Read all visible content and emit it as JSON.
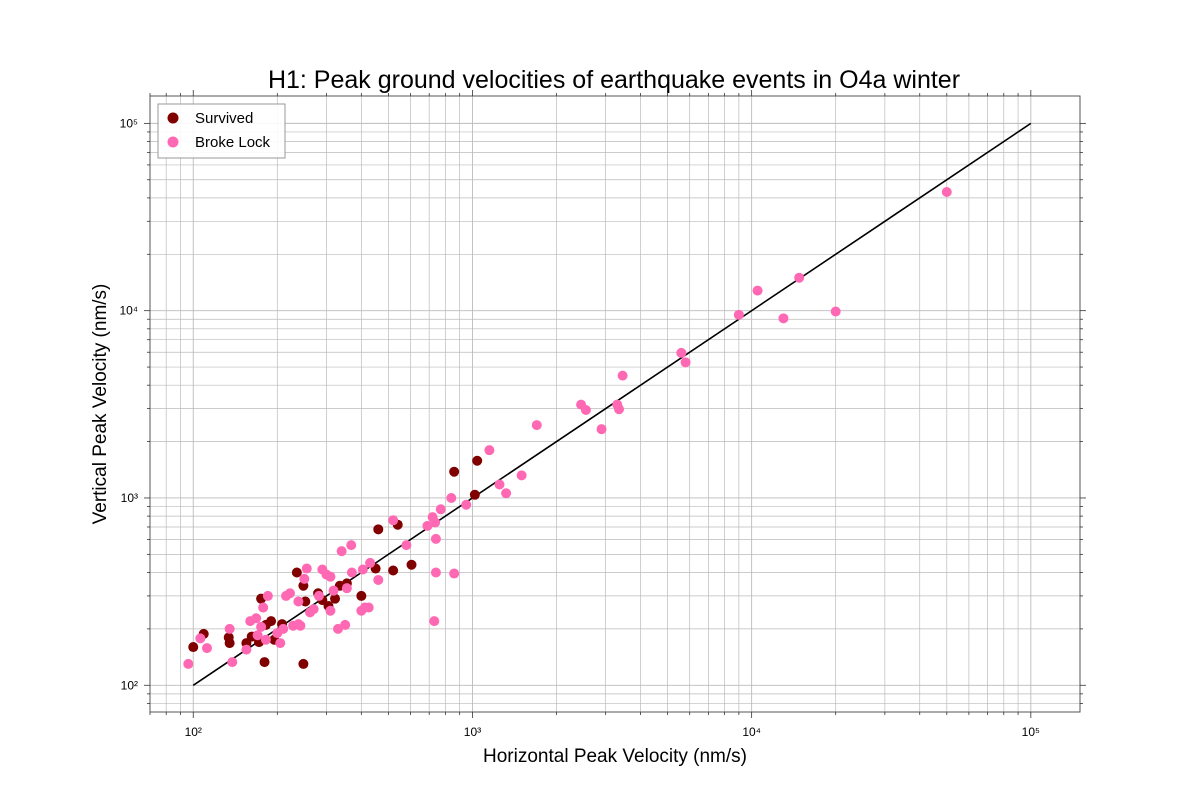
{
  "chart_data": {
    "type": "scatter",
    "title": "H1: Peak ground velocities of earthquake events in O4a winter",
    "xlabel": "Horizontal Peak Velocity (nm/s)",
    "ylabel": "Vertical Peak Velocity (nm/s)",
    "xscale": "log",
    "yscale": "log",
    "xlim": [
      70,
      150000
    ],
    "ylim": [
      72,
      140000
    ],
    "grid": true,
    "legend_position": "top-left",
    "x_ticks": [
      {
        "value": 100,
        "label": "10²"
      },
      {
        "value": 1000,
        "label": "10³"
      },
      {
        "value": 10000,
        "label": "10⁴"
      },
      {
        "value": 100000,
        "label": "10⁵"
      }
    ],
    "y_ticks": [
      {
        "value": 100,
        "label": "10²"
      },
      {
        "value": 1000,
        "label": "10³"
      },
      {
        "value": 10000,
        "label": "10⁴"
      },
      {
        "value": 100000,
        "label": "10⁵"
      }
    ],
    "reference_line": {
      "x": [
        100,
        100000
      ],
      "y": [
        100,
        100000
      ],
      "color": "#000000"
    },
    "series": [
      {
        "name": "Survived",
        "color": "#800000",
        "points": [
          [
            100,
            160
          ],
          [
            109,
            188
          ],
          [
            134,
            180
          ],
          [
            135,
            168
          ],
          [
            155,
            168
          ],
          [
            162,
            182
          ],
          [
            172,
            170
          ],
          [
            175,
            290
          ],
          [
            180,
            133
          ],
          [
            182,
            210
          ],
          [
            190,
            220
          ],
          [
            195,
            175
          ],
          [
            208,
            212
          ],
          [
            235,
            400
          ],
          [
            248,
            340
          ],
          [
            252,
            280
          ],
          [
            248,
            130
          ],
          [
            280,
            310
          ],
          [
            290,
            285
          ],
          [
            305,
            265
          ],
          [
            322,
            290
          ],
          [
            335,
            340
          ],
          [
            355,
            350
          ],
          [
            400,
            300
          ],
          [
            450,
            420
          ],
          [
            460,
            680
          ],
          [
            520,
            410
          ],
          [
            540,
            720
          ],
          [
            605,
            440
          ],
          [
            860,
            1380
          ],
          [
            1020,
            1040
          ],
          [
            1040,
            1580
          ]
        ]
      },
      {
        "name": "Broke Lock",
        "color": "#ff69b4",
        "points": [
          [
            96,
            130
          ],
          [
            106,
            178
          ],
          [
            112,
            158
          ],
          [
            135,
            200
          ],
          [
            138,
            133
          ],
          [
            155,
            155
          ],
          [
            160,
            220
          ],
          [
            168,
            228
          ],
          [
            170,
            185
          ],
          [
            175,
            205
          ],
          [
            178,
            260
          ],
          [
            182,
            175
          ],
          [
            185,
            300
          ],
          [
            200,
            190
          ],
          [
            205,
            168
          ],
          [
            210,
            200
          ],
          [
            215,
            300
          ],
          [
            222,
            310
          ],
          [
            228,
            208
          ],
          [
            238,
            212
          ],
          [
            238,
            280
          ],
          [
            242,
            208
          ],
          [
            250,
            370
          ],
          [
            255,
            420
          ],
          [
            262,
            245
          ],
          [
            270,
            255
          ],
          [
            282,
            300
          ],
          [
            290,
            415
          ],
          [
            300,
            390
          ],
          [
            310,
            380
          ],
          [
            310,
            250
          ],
          [
            318,
            320
          ],
          [
            330,
            200
          ],
          [
            340,
            520
          ],
          [
            350,
            210
          ],
          [
            355,
            330
          ],
          [
            368,
            560
          ],
          [
            370,
            400
          ],
          [
            400,
            250
          ],
          [
            405,
            415
          ],
          [
            412,
            260
          ],
          [
            425,
            260
          ],
          [
            430,
            450
          ],
          [
            460,
            365
          ],
          [
            520,
            760
          ],
          [
            580,
            560
          ],
          [
            690,
            710
          ],
          [
            720,
            790
          ],
          [
            735,
            740
          ],
          [
            740,
            400
          ],
          [
            740,
            605
          ],
          [
            770,
            870
          ],
          [
            840,
            1000
          ],
          [
            860,
            395
          ],
          [
            730,
            220
          ],
          [
            950,
            920
          ],
          [
            1150,
            1800
          ],
          [
            1250,
            1180
          ],
          [
            1320,
            1060
          ],
          [
            1500,
            1320
          ],
          [
            1700,
            2450
          ],
          [
            2450,
            3150
          ],
          [
            2550,
            2950
          ],
          [
            2900,
            2330
          ],
          [
            3300,
            3150
          ],
          [
            3350,
            2980
          ],
          [
            3450,
            4500
          ],
          [
            5600,
            5950
          ],
          [
            5800,
            5300
          ],
          [
            9000,
            9500
          ],
          [
            10500,
            12800
          ],
          [
            13000,
            9100
          ],
          [
            14800,
            15000
          ],
          [
            20000,
            9900
          ],
          [
            50000,
            43000
          ]
        ]
      }
    ]
  }
}
